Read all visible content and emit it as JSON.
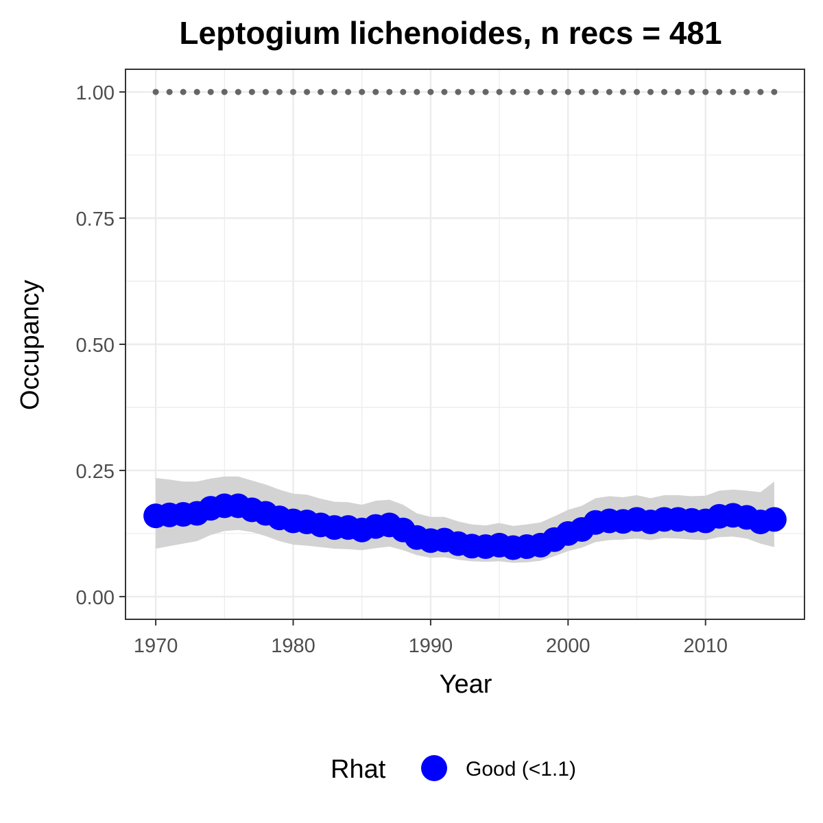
{
  "chart_data": {
    "type": "line",
    "title": "Leptogium lichenoides, n recs = 481",
    "xlabel": "Year",
    "ylabel": "Occupancy",
    "xlim": [
      1967.8,
      2017.2
    ],
    "ylim": [
      -0.045,
      1.045
    ],
    "x_ticks": [
      1970,
      1980,
      1990,
      2000,
      2010
    ],
    "y_ticks": [
      0,
      0.25,
      0.5,
      0.75,
      1.0
    ],
    "y_tick_labels": [
      "0.00",
      "0.25",
      "0.50",
      "0.75",
      "1.00"
    ],
    "grid": true,
    "legend": {
      "title": "Rhat",
      "position": "bottom",
      "entries": [
        {
          "label": "Good (<1.1)",
          "color": "#0000ff"
        }
      ]
    },
    "colors": {
      "series": "#0000ff",
      "ribbon": "#d3d3d3",
      "recs": "#666666",
      "grid": "#ebebeb",
      "panel_border": "#333333"
    },
    "series": [
      {
        "name": "Good (<1.1)",
        "x": [
          1970,
          1971,
          1972,
          1973,
          1974,
          1975,
          1976,
          1977,
          1978,
          1979,
          1980,
          1981,
          1982,
          1983,
          1984,
          1985,
          1986,
          1987,
          1988,
          1989,
          1990,
          1991,
          1992,
          1993,
          1994,
          1995,
          1996,
          1997,
          1998,
          1999,
          2000,
          2001,
          2002,
          2003,
          2004,
          2005,
          2006,
          2007,
          2008,
          2009,
          2010,
          2011,
          2012,
          2013,
          2014,
          2015
        ],
        "y": [
          0.16,
          0.162,
          0.163,
          0.165,
          0.175,
          0.18,
          0.18,
          0.172,
          0.165,
          0.156,
          0.15,
          0.148,
          0.142,
          0.137,
          0.137,
          0.132,
          0.139,
          0.142,
          0.132,
          0.117,
          0.111,
          0.112,
          0.105,
          0.1,
          0.099,
          0.102,
          0.097,
          0.099,
          0.102,
          0.113,
          0.125,
          0.133,
          0.147,
          0.15,
          0.149,
          0.153,
          0.148,
          0.153,
          0.153,
          0.151,
          0.15,
          0.159,
          0.161,
          0.157,
          0.148,
          0.153
        ],
        "lower": [
          0.095,
          0.1,
          0.105,
          0.11,
          0.122,
          0.13,
          0.132,
          0.128,
          0.12,
          0.11,
          0.103,
          0.101,
          0.098,
          0.095,
          0.094,
          0.092,
          0.096,
          0.099,
          0.092,
          0.082,
          0.077,
          0.078,
          0.073,
          0.07,
          0.069,
          0.07,
          0.067,
          0.068,
          0.071,
          0.08,
          0.09,
          0.097,
          0.108,
          0.112,
          0.113,
          0.115,
          0.112,
          0.116,
          0.115,
          0.113,
          0.112,
          0.118,
          0.119,
          0.115,
          0.105,
          0.098
        ],
        "upper": [
          0.235,
          0.232,
          0.228,
          0.228,
          0.234,
          0.238,
          0.238,
          0.23,
          0.222,
          0.212,
          0.204,
          0.202,
          0.194,
          0.188,
          0.187,
          0.182,
          0.19,
          0.192,
          0.182,
          0.165,
          0.158,
          0.158,
          0.149,
          0.143,
          0.141,
          0.146,
          0.14,
          0.143,
          0.147,
          0.159,
          0.172,
          0.18,
          0.195,
          0.199,
          0.197,
          0.201,
          0.195,
          0.201,
          0.201,
          0.199,
          0.2,
          0.21,
          0.212,
          0.21,
          0.207,
          0.228
        ]
      }
    ],
    "records": {
      "x": [
        1970,
        1971,
        1972,
        1973,
        1974,
        1975,
        1976,
        1977,
        1978,
        1979,
        1980,
        1981,
        1982,
        1983,
        1984,
        1985,
        1986,
        1987,
        1988,
        1989,
        1990,
        1991,
        1992,
        1993,
        1994,
        1995,
        1996,
        1997,
        1998,
        1999,
        2000,
        2001,
        2002,
        2003,
        2004,
        2005,
        2006,
        2007,
        2008,
        2009,
        2010,
        2011,
        2012,
        2013,
        2014,
        2015
      ],
      "y": 1.0
    }
  }
}
